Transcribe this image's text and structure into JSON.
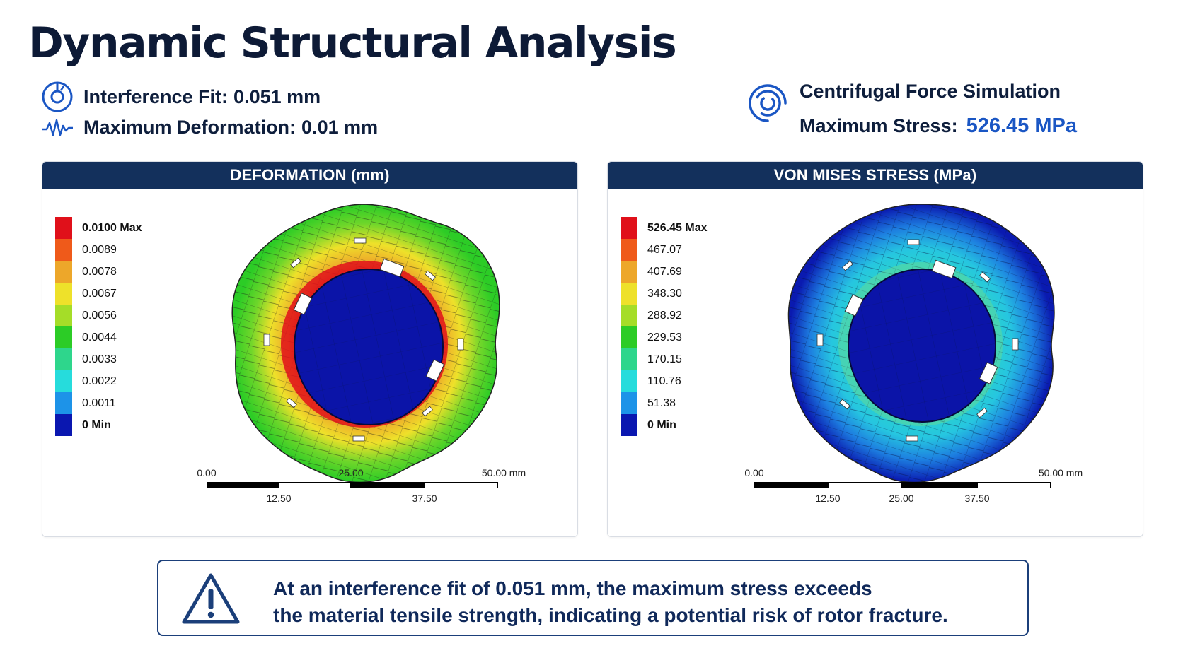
{
  "title": "Dynamic Structural Analysis",
  "info_left": {
    "interference_label": "Interference Fit:",
    "interference_value": "0.051 mm",
    "deformation_label": "Maximum Deformation:",
    "deformation_value": "0.01 mm"
  },
  "info_right": {
    "simulation_label": "Centrifugal Force Simulation",
    "stress_label": "Maximum Stress:",
    "stress_value": "526.45 MPa"
  },
  "icons": {
    "interference": "target-ring-icon",
    "deformation": "waveform-icon",
    "centrifugal": "spiral-vortex-icon",
    "warning": "warning-triangle-icon"
  },
  "colors": {
    "header_navy": "#13305c",
    "accent_blue": "#1a56c4"
  },
  "deformation_panel": {
    "header": "DEFORMATION (mm)",
    "legend": [
      {
        "label": "0.0100 Max",
        "color": "#e0101a"
      },
      {
        "label": "0.0089",
        "color": "#ef5a1a"
      },
      {
        "label": "0.0078",
        "color": "#eda72a"
      },
      {
        "label": "0.0067",
        "color": "#eee12a"
      },
      {
        "label": "0.0056",
        "color": "#a5dd28"
      },
      {
        "label": "0.0044",
        "color": "#2ccc26"
      },
      {
        "label": "0.0033",
        "color": "#2ed68c"
      },
      {
        "label": "0.0022",
        "color": "#26dcdc"
      },
      {
        "label": "0.0011",
        "color": "#1d93e8"
      },
      {
        "label": "0 Min",
        "color": "#0a17b0"
      }
    ],
    "scale": {
      "top_labels": [
        "0.00",
        "25.00",
        "50.00 mm"
      ],
      "bottom_labels": [
        "12.50",
        "37.50"
      ]
    }
  },
  "stress_panel": {
    "header": "VON MISES STRESS (MPa)",
    "legend": [
      {
        "label": "526.45 Max",
        "color": "#e0101a"
      },
      {
        "label": "467.07",
        "color": "#ef5a1a"
      },
      {
        "label": "407.69",
        "color": "#eda72a"
      },
      {
        "label": "348.30",
        "color": "#eee12a"
      },
      {
        "label": "288.92",
        "color": "#a5dd28"
      },
      {
        "label": "229.53",
        "color": "#2ccc26"
      },
      {
        "label": "170.15",
        "color": "#2ed68c"
      },
      {
        "label": "110.76",
        "color": "#26dcdc"
      },
      {
        "label": "51.38",
        "color": "#1d93e8"
      },
      {
        "label": "0 Min",
        "color": "#0a17b0"
      }
    ],
    "scale": {
      "top_labels": [
        "0.00",
        "50.00 mm"
      ],
      "bottom_labels": [
        "12.50",
        "25.00",
        "37.50"
      ]
    }
  },
  "warning": {
    "line1": "At an interference fit of 0.051 mm, the maximum stress exceeds",
    "line2": "the material tensile strength, indicating a potential risk of rotor fracture."
  }
}
